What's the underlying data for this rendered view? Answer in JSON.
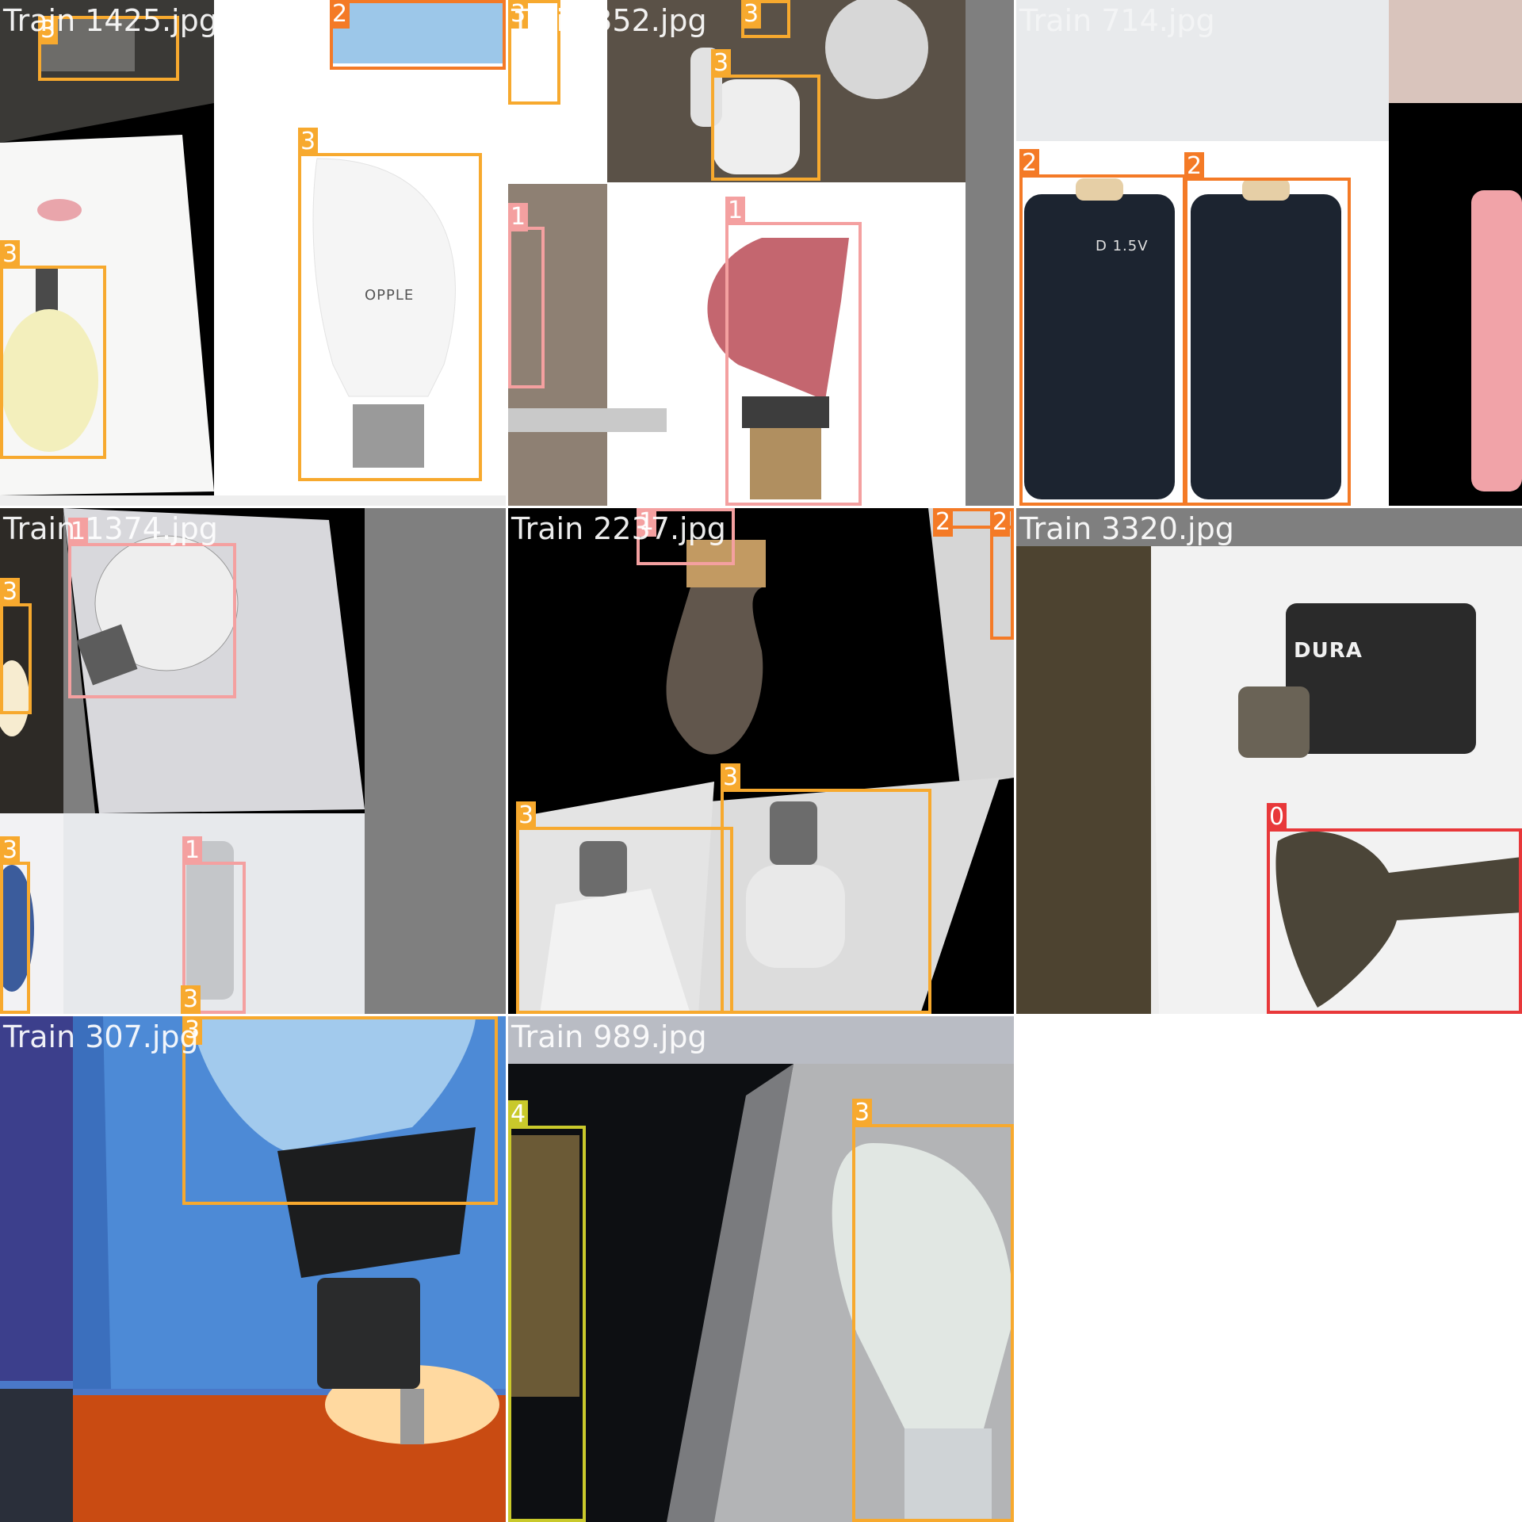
{
  "palette": {
    "class_0": "#e8383a",
    "class_1": "#f4a0a0",
    "class_2": "#f47a26",
    "class_3": "#f7a92e",
    "class_4": "#c9c92b"
  },
  "tiles": [
    {
      "title": "Train 1425.jpg",
      "boxes": [
        {
          "cls": "3"
        },
        {
          "cls": "2"
        },
        {
          "cls": "3"
        },
        {
          "cls": "3"
        }
      ],
      "texts": {
        "brand": "OPPLE"
      }
    },
    {
      "title": "Train 352.jpg",
      "boxes": [
        {
          "cls": "3"
        },
        {
          "cls": "3"
        },
        {
          "cls": "3"
        },
        {
          "cls": "1"
        },
        {
          "cls": "1"
        }
      ]
    },
    {
      "title": "Train 714.jpg",
      "boxes": [
        {
          "cls": "2"
        },
        {
          "cls": "2"
        }
      ],
      "texts": {
        "battery_voltage": "D 1.5V"
      }
    },
    {
      "title": "Train 1374.jpg",
      "boxes": [
        {
          "cls": "1"
        },
        {
          "cls": "3"
        },
        {
          "cls": "3"
        },
        {
          "cls": "1"
        },
        {
          "cls": "3"
        }
      ]
    },
    {
      "title": "Train 2237.jpg",
      "boxes": [
        {
          "cls": "1"
        },
        {
          "cls": "2"
        },
        {
          "cls": "2"
        },
        {
          "cls": "3"
        },
        {
          "cls": "3"
        }
      ]
    },
    {
      "title": "Train 3320.jpg",
      "boxes": [
        {
          "cls": "0"
        }
      ],
      "texts": {
        "brand": "DURA"
      }
    },
    {
      "title": "Train 307.jpg",
      "boxes": [
        {
          "cls": "3"
        }
      ]
    },
    {
      "title": "Train 989.jpg",
      "boxes": [
        {
          "cls": "4"
        },
        {
          "cls": "3"
        }
      ]
    }
  ]
}
